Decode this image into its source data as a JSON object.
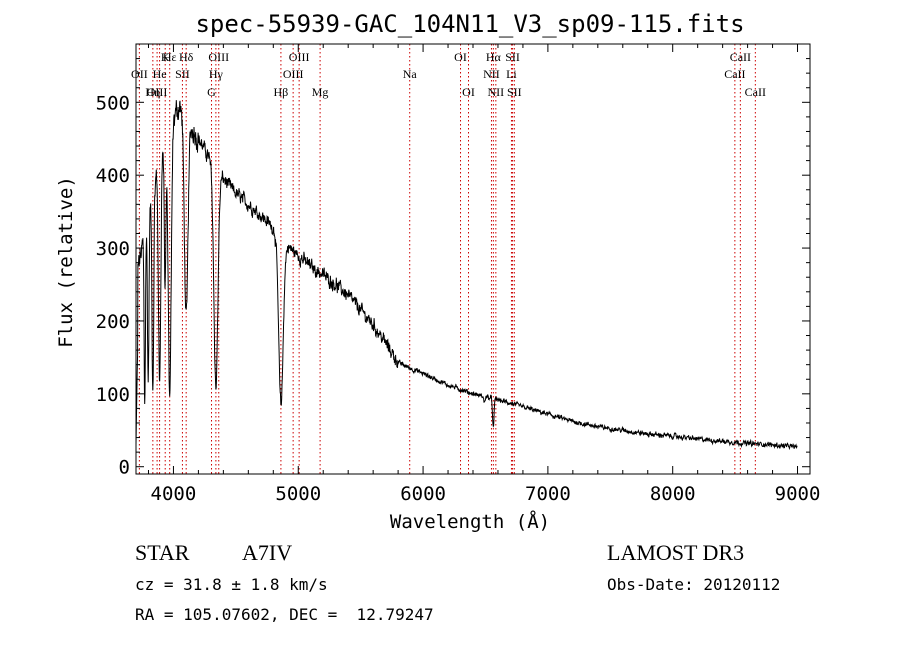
{
  "chart_data": {
    "type": "line",
    "title": "spec-55939-GAC_104N11_V3_sp09-115.fits",
    "xlabel": "Wavelength (Å)",
    "ylabel": "Flux (relative)",
    "xlim": [
      3700,
      9100
    ],
    "ylim": [
      -10,
      580
    ],
    "x_ticks": [
      4000,
      5000,
      6000,
      7000,
      8000,
      9000
    ],
    "y_ticks": [
      0,
      100,
      200,
      300,
      400,
      500
    ],
    "line_color": "#000000",
    "marker_color": "#cc0000",
    "continuum": {
      "x": [
        3700,
        3750,
        3800,
        3900,
        4000,
        4050,
        4100,
        4200,
        4300,
        4400,
        4500,
        4600,
        4700,
        4800,
        4900,
        5000,
        5100,
        5200,
        5300,
        5400,
        5500,
        5600,
        5700,
        5800,
        5900,
        6000,
        6200,
        6400,
        6600,
        6800,
        7000,
        7200,
        7400,
        7600,
        7800,
        8000,
        8200,
        8400,
        8600,
        8800,
        9000
      ],
      "y": [
        260,
        300,
        350,
        430,
        480,
        495,
        480,
        450,
        420,
        395,
        375,
        360,
        345,
        328,
        305,
        290,
        275,
        263,
        250,
        235,
        215,
        195,
        170,
        143,
        135,
        128,
        112,
        100,
        92,
        82,
        72,
        62,
        55,
        50,
        45,
        42,
        38,
        35,
        32,
        30,
        27
      ]
    },
    "absorption_lines": [
      {
        "center": 3770,
        "depth": 240,
        "width": 5
      },
      {
        "center": 3798,
        "depth": 230,
        "width": 6
      },
      {
        "center": 3835,
        "depth": 270,
        "width": 7
      },
      {
        "center": 3889,
        "depth": 310,
        "width": 9
      },
      {
        "center": 3933,
        "depth": 200,
        "width": 6
      },
      {
        "center": 3970,
        "depth": 370,
        "width": 12
      },
      {
        "center": 4102,
        "depth": 280,
        "width": 14
      },
      {
        "center": 4340,
        "depth": 300,
        "width": 16
      },
      {
        "center": 4861,
        "depth": 230,
        "width": 18
      },
      {
        "center": 6563,
        "depth": 40,
        "width": 6
      },
      {
        "center": 6490,
        "depth": 8,
        "width": 5
      }
    ],
    "line_markers": [
      {
        "label": "Hε",
        "wavelength": 3970,
        "row": 1
      },
      {
        "label": "K",
        "wavelength": 3934,
        "row": 1
      },
      {
        "label": "Hδ",
        "wavelength": 4102,
        "row": 1
      },
      {
        "label": "OIII",
        "wavelength": 4363,
        "row": 1
      },
      {
        "label": "OIII",
        "wavelength": 5007,
        "row": 1
      },
      {
        "label": "OI",
        "wavelength": 6300,
        "row": 1
      },
      {
        "label": "Hα",
        "wavelength": 6563,
        "row": 1
      },
      {
        "label": "SII",
        "wavelength": 6717,
        "row": 1
      },
      {
        "label": "CaII",
        "wavelength": 8542,
        "row": 1
      },
      {
        "label": "OII",
        "wavelength": 3727,
        "row": 2
      },
      {
        "label": "He",
        "wavelength": 3889,
        "row": 2
      },
      {
        "label": "SII",
        "wavelength": 4072,
        "row": 2
      },
      {
        "label": "Hγ",
        "wavelength": 4340,
        "row": 2
      },
      {
        "label": "OIII",
        "wavelength": 4959,
        "row": 2
      },
      {
        "label": "Na",
        "wavelength": 5893,
        "row": 2
      },
      {
        "label": "NII",
        "wavelength": 6548,
        "row": 2
      },
      {
        "label": "Li",
        "wavelength": 6708,
        "row": 2
      },
      {
        "label": "CaII",
        "wavelength": 8498,
        "row": 2
      },
      {
        "label": "OIII",
        "wavelength": 3869,
        "row": 3
      },
      {
        "label": "Hη",
        "wavelength": 3835,
        "row": 3
      },
      {
        "label": "G",
        "wavelength": 4305,
        "row": 3
      },
      {
        "label": "Hβ",
        "wavelength": 4861,
        "row": 3
      },
      {
        "label": "Mg",
        "wavelength": 5175,
        "row": 3
      },
      {
        "label": "OI",
        "wavelength": 6364,
        "row": 3
      },
      {
        "label": "NII",
        "wavelength": 6583,
        "row": 3
      },
      {
        "label": "SII",
        "wavelength": 6731,
        "row": 3
      },
      {
        "label": "CaII",
        "wavelength": 8662,
        "row": 3
      }
    ]
  },
  "info": {
    "class_label": "STAR",
    "subclass": "A7IV",
    "survey": "LAMOST DR3",
    "cz": "cz = 31.8 ± 1.8 km/s",
    "obs_date": "Obs-Date: 20120112",
    "coords": "RA = 105.07602, DEC =  12.79247"
  }
}
